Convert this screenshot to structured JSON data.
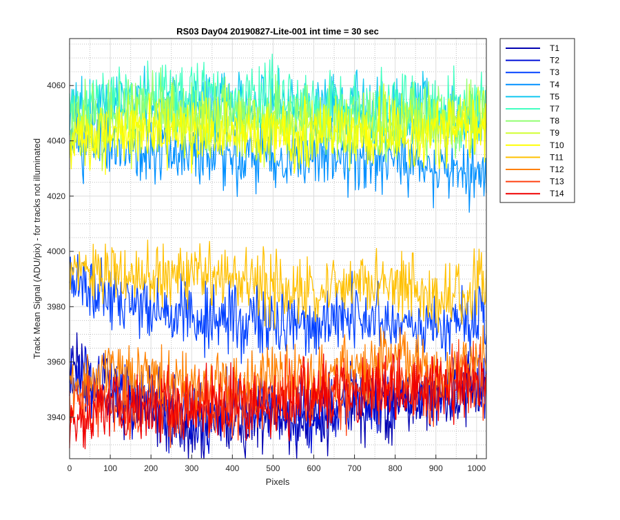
{
  "chart_data": {
    "type": "line",
    "title": "RS03 Day04 20190827-Lite-001 int time = 30 sec",
    "xlabel": "Pixels",
    "ylabel": "Track Mean Signal (ADU/pix) - for tracks not illuminated",
    "xlim": [
      0,
      1024
    ],
    "ylim": [
      3925,
      4077
    ],
    "xticks": [
      0,
      100,
      200,
      300,
      400,
      500,
      600,
      700,
      800,
      900,
      1000
    ],
    "yticks": [
      3940,
      3960,
      3980,
      4000,
      4020,
      4040,
      4060
    ],
    "grid": true,
    "legend_position": "outside-top-right",
    "series": [
      {
        "name": "T1",
        "color": "#0000b0",
        "x": [
          0,
          100,
          200,
          300,
          400,
          500,
          600,
          700,
          800,
          900,
          1024
        ],
        "y": [
          3958,
          3950,
          3943,
          3935,
          3938,
          3940,
          3938,
          3945,
          3944,
          3946,
          3952
        ]
      },
      {
        "name": "T2",
        "color": "#0010d8",
        "x": [
          0,
          100,
          200,
          300,
          400,
          500,
          600,
          700,
          800,
          900,
          1024
        ],
        "y": [
          3955,
          3948,
          3945,
          3940,
          3942,
          3943,
          3940,
          3946,
          3945,
          3948,
          3953
        ]
      },
      {
        "name": "T3",
        "color": "#0040ff",
        "x": [
          0,
          100,
          200,
          300,
          400,
          500,
          600,
          700,
          800,
          900,
          1024
        ],
        "y": [
          3988,
          3984,
          3980,
          3976,
          3975,
          3974,
          3974,
          3978,
          3976,
          3973,
          3976
        ]
      },
      {
        "name": "T4",
        "color": "#0090ff",
        "x": [
          0,
          100,
          200,
          300,
          400,
          500,
          600,
          700,
          800,
          900,
          1024
        ],
        "y": [
          4040,
          4038,
          4038,
          4036,
          4036,
          4035,
          4035,
          4034,
          4032,
          4028,
          4030
        ]
      },
      {
        "name": "T5",
        "color": "#10c8f0",
        "x": [
          0,
          100,
          200,
          300,
          400,
          500,
          600,
          700,
          800,
          900,
          1024
        ],
        "y": [
          4052,
          4054,
          4055,
          4053,
          4054,
          4053,
          4052,
          4051,
          4050,
          4050,
          4050
        ]
      },
      {
        "name": "T7",
        "color": "#40ffc0",
        "x": [
          0,
          100,
          200,
          300,
          400,
          500,
          600,
          700,
          800,
          900,
          1024
        ],
        "y": [
          4050,
          4055,
          4058,
          4057,
          4056,
          4055,
          4054,
          4053,
          4052,
          4052,
          4053
        ]
      },
      {
        "name": "T8",
        "color": "#90ff70",
        "x": [
          0,
          100,
          200,
          300,
          400,
          500,
          600,
          700,
          800,
          900,
          1024
        ],
        "y": [
          4046,
          4050,
          4052,
          4050,
          4050,
          4049,
          4048,
          4047,
          4047,
          4048,
          4050
        ]
      },
      {
        "name": "T9",
        "color": "#d0ff30",
        "x": [
          0,
          100,
          200,
          300,
          400,
          500,
          600,
          700,
          800,
          900,
          1024
        ],
        "y": [
          4042,
          4044,
          4046,
          4044,
          4045,
          4044,
          4044,
          4044,
          4045,
          4046,
          4048
        ]
      },
      {
        "name": "T10",
        "color": "#ffff00",
        "x": [
          0,
          100,
          200,
          300,
          400,
          500,
          600,
          700,
          800,
          900,
          1024
        ],
        "y": [
          4040,
          4042,
          4044,
          4042,
          4043,
          4042,
          4042,
          4043,
          4043,
          4044,
          4046
        ]
      },
      {
        "name": "T11",
        "color": "#ffc000",
        "x": [
          0,
          100,
          200,
          300,
          400,
          500,
          600,
          700,
          800,
          900,
          1024
        ],
        "y": [
          3993,
          3993,
          3992,
          3992,
          3990,
          3987,
          3986,
          3989,
          3987,
          3984,
          3988
        ]
      },
      {
        "name": "T12",
        "color": "#ff8000",
        "x": [
          0,
          100,
          200,
          300,
          400,
          500,
          600,
          700,
          800,
          900,
          1024
        ],
        "y": [
          3952,
          3957,
          3956,
          3950,
          3952,
          3955,
          3954,
          3958,
          3959,
          3956,
          3960
        ]
      },
      {
        "name": "T13",
        "color": "#ff4010",
        "x": [
          0,
          100,
          200,
          300,
          400,
          500,
          600,
          700,
          800,
          900,
          1024
        ],
        "y": [
          3945,
          3946,
          3944,
          3944,
          3946,
          3946,
          3949,
          3951,
          3952,
          3950,
          3954
        ]
      },
      {
        "name": "T14",
        "color": "#f00000",
        "x": [
          0,
          100,
          200,
          300,
          400,
          500,
          600,
          700,
          800,
          900,
          1024
        ],
        "y": [
          3940,
          3943,
          3942,
          3943,
          3944,
          3944,
          3947,
          3949,
          3950,
          3949,
          3953
        ]
      }
    ]
  }
}
